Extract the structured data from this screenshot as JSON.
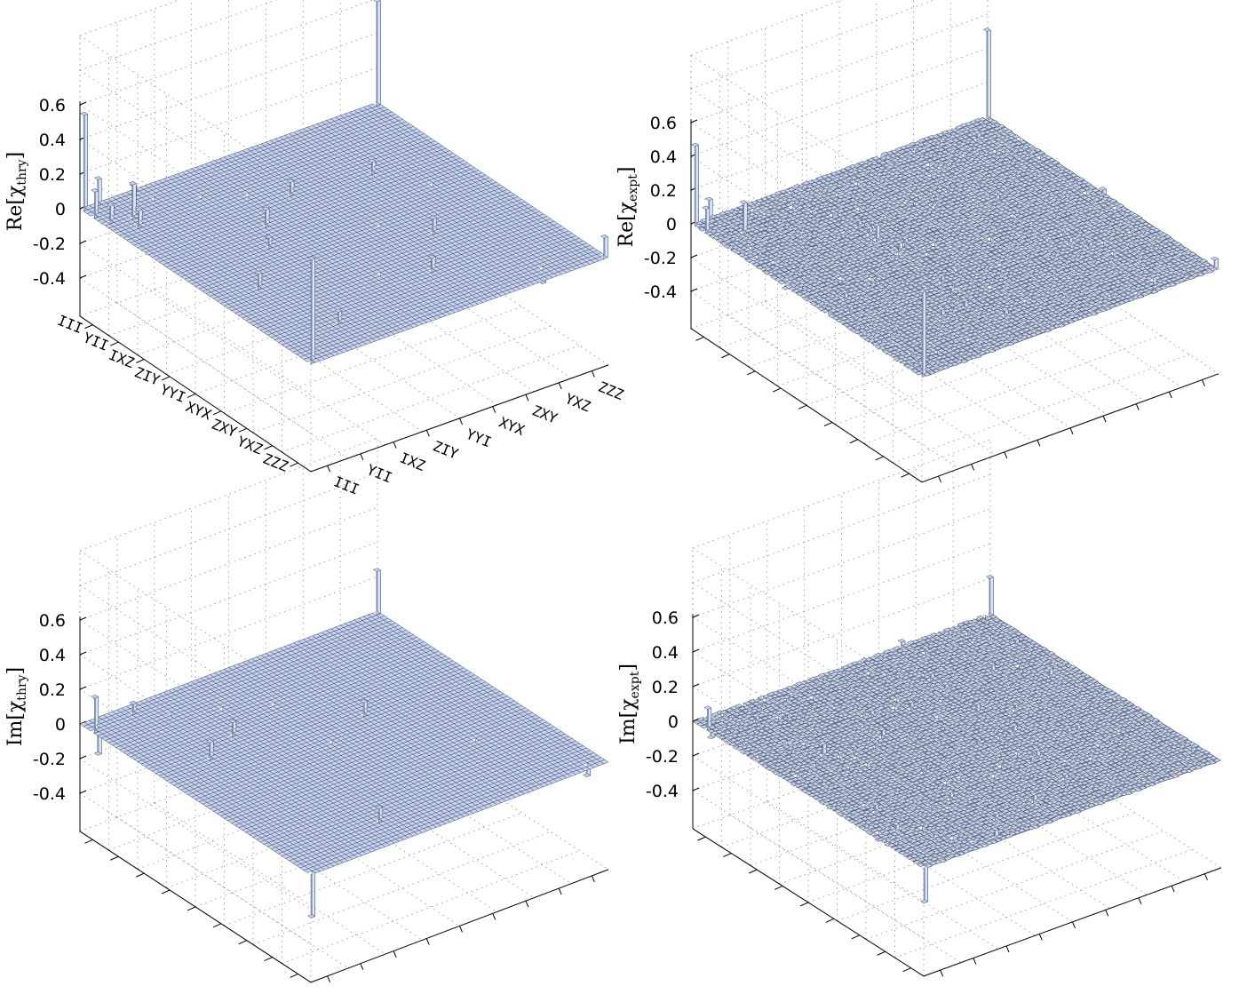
{
  "figure": {
    "panels": [
      {
        "id": "re-thry",
        "zlabel": {
          "prefix": "Re",
          "symbol": "χ",
          "subscript": "thry"
        },
        "ztick_labels": [
          "0.6",
          "0.4",
          "0.2",
          "0",
          "-0.2",
          "-0.4"
        ],
        "show_category_labels": true
      },
      {
        "id": "re-expt",
        "zlabel": {
          "prefix": "Re",
          "symbol": "χ",
          "subscript": "expt"
        },
        "ztick_labels": [
          "0.6",
          "0.4",
          "0.2",
          "0",
          "-0.2",
          "-0.4"
        ],
        "show_category_labels": false
      },
      {
        "id": "im-thry",
        "zlabel": {
          "prefix": "Im",
          "symbol": "χ",
          "subscript": "thry"
        },
        "ztick_labels": [
          "0.6",
          "0.4",
          "0.2",
          "0",
          "-0.2",
          "-0.4"
        ],
        "show_category_labels": false
      },
      {
        "id": "im-expt",
        "zlabel": {
          "prefix": "Im",
          "symbol": "χ",
          "subscript": "expt"
        },
        "ztick_labels": [
          "0.6",
          "0.4",
          "0.2",
          "0",
          "-0.2",
          "-0.4"
        ],
        "show_category_labels": false
      }
    ],
    "colors": {
      "bar_face": "#c6d4f2",
      "bar_edge": "#3c4658",
      "grid": "#9a9a9a",
      "axis": "#000000"
    }
  },
  "chart_data": [
    {
      "type": "bar3d",
      "title": "",
      "zlabel": "Re[χ_thry]",
      "zlim": [
        -0.6,
        0.6
      ],
      "categories": [
        "III",
        "YII",
        "IXZ",
        "ZIY",
        "YYI",
        "XYX",
        "ZXY",
        "YXZ",
        "ZZZ"
      ],
      "grid_size": 64,
      "surface": "flat",
      "bars": [
        {
          "row": 0,
          "col": 0,
          "value": 0.55
        },
        {
          "row": 0,
          "col": 63,
          "value": 0.6
        },
        {
          "row": 63,
          "col": 0,
          "value": 0.6
        },
        {
          "row": 63,
          "col": 63,
          "value": 0.12
        },
        {
          "row": 3,
          "col": 0,
          "value": 0.15
        },
        {
          "row": 0,
          "col": 3,
          "value": 0.15
        },
        {
          "row": 6,
          "col": 1,
          "value": 0.1
        },
        {
          "row": 7,
          "col": 5,
          "value": 0.2
        },
        {
          "row": 10,
          "col": 4,
          "value": 0.1
        },
        {
          "row": 2,
          "col": 9,
          "value": 0.08
        },
        {
          "row": 4,
          "col": 12,
          "value": -0.12
        },
        {
          "row": 8,
          "col": 19,
          "value": -0.22
        },
        {
          "row": 12,
          "col": 26,
          "value": -0.14
        },
        {
          "row": 16,
          "col": 32,
          "value": 0.08
        },
        {
          "row": 22,
          "col": 22,
          "value": 0.1
        },
        {
          "row": 28,
          "col": 18,
          "value": 0.06
        },
        {
          "row": 33,
          "col": 38,
          "value": -0.1
        },
        {
          "row": 40,
          "col": 44,
          "value": 0.09
        },
        {
          "row": 27,
          "col": 54,
          "value": -0.1
        },
        {
          "row": 46,
          "col": 28,
          "value": -0.14
        },
        {
          "row": 50,
          "col": 36,
          "value": 0.08
        },
        {
          "row": 60,
          "col": 52,
          "value": -0.08
        },
        {
          "row": 55,
          "col": 12,
          "value": 0.07
        },
        {
          "row": 38,
          "col": 8,
          "value": 0.09
        },
        {
          "row": 18,
          "col": 48,
          "value": 0.07
        }
      ]
    },
    {
      "type": "bar3d",
      "title": "",
      "zlabel": "Re[χ_expt]",
      "zlim": [
        -0.6,
        0.6
      ],
      "categories": [
        "III",
        "YII",
        "IXZ",
        "ZIY",
        "YYI",
        "XYX",
        "ZXY",
        "YXZ",
        "ZZZ"
      ],
      "grid_size": 64,
      "surface": "noisy",
      "bars": [
        {
          "row": 0,
          "col": 0,
          "value": 0.47
        },
        {
          "row": 0,
          "col": 63,
          "value": 0.52
        },
        {
          "row": 63,
          "col": 0,
          "value": 0.5
        },
        {
          "row": 63,
          "col": 63,
          "value": 0.06
        },
        {
          "row": 3,
          "col": 0,
          "value": 0.14
        },
        {
          "row": 0,
          "col": 3,
          "value": 0.12
        },
        {
          "row": 7,
          "col": 5,
          "value": 0.18
        },
        {
          "row": 4,
          "col": 12,
          "value": -0.11
        },
        {
          "row": 8,
          "col": 19,
          "value": -0.2
        },
        {
          "row": 12,
          "col": 26,
          "value": -0.12
        },
        {
          "row": 22,
          "col": 22,
          "value": 0.09
        },
        {
          "row": 33,
          "col": 38,
          "value": -0.08
        },
        {
          "row": 46,
          "col": 28,
          "value": -0.1
        },
        {
          "row": 60,
          "col": 52,
          "value": -0.07
        }
      ]
    },
    {
      "type": "bar3d",
      "title": "",
      "zlabel": "Im[χ_thry]",
      "zlim": [
        -0.6,
        0.6
      ],
      "categories": [
        "III",
        "YII",
        "IXZ",
        "ZIY",
        "YYI",
        "XYX",
        "ZXY",
        "YXZ",
        "ZZZ"
      ],
      "grid_size": 64,
      "surface": "flat",
      "bars": [
        {
          "row": 0,
          "col": 63,
          "value": 0.25
        },
        {
          "row": 63,
          "col": 0,
          "value": -0.25
        },
        {
          "row": 0,
          "col": 3,
          "value": -0.2
        },
        {
          "row": 3,
          "col": 0,
          "value": 0.2
        },
        {
          "row": 2,
          "col": 9,
          "value": 0.06
        },
        {
          "row": 6,
          "col": 14,
          "value": -0.2
        },
        {
          "row": 10,
          "col": 22,
          "value": -0.22
        },
        {
          "row": 14,
          "col": 30,
          "value": -0.1
        },
        {
          "row": 18,
          "col": 18,
          "value": 0.08
        },
        {
          "row": 22,
          "col": 10,
          "value": 0.1
        },
        {
          "row": 26,
          "col": 40,
          "value": 0.08
        },
        {
          "row": 30,
          "col": 30,
          "value": -0.08
        },
        {
          "row": 44,
          "col": 50,
          "value": -0.08
        },
        {
          "row": 56,
          "col": 20,
          "value": 0.08
        },
        {
          "row": 62,
          "col": 60,
          "value": -0.06
        }
      ]
    },
    {
      "type": "bar3d",
      "title": "",
      "zlabel": "Im[χ_expt]",
      "zlim": [
        -0.6,
        0.6
      ],
      "categories": [
        "III",
        "YII",
        "IXZ",
        "ZIY",
        "YYI",
        "XYX",
        "ZXY",
        "YXZ",
        "ZZZ"
      ],
      "grid_size": 64,
      "surface": "noisy",
      "bars": [
        {
          "row": 0,
          "col": 63,
          "value": 0.22
        },
        {
          "row": 63,
          "col": 0,
          "value": -0.2
        },
        {
          "row": 3,
          "col": 0,
          "value": 0.12
        },
        {
          "row": 0,
          "col": 3,
          "value": -0.12
        },
        {
          "row": 6,
          "col": 14,
          "value": -0.12
        },
        {
          "row": 10,
          "col": 22,
          "value": -0.14
        },
        {
          "row": 22,
          "col": 10,
          "value": 0.07
        },
        {
          "row": 26,
          "col": 40,
          "value": 0.06
        }
      ]
    }
  ]
}
